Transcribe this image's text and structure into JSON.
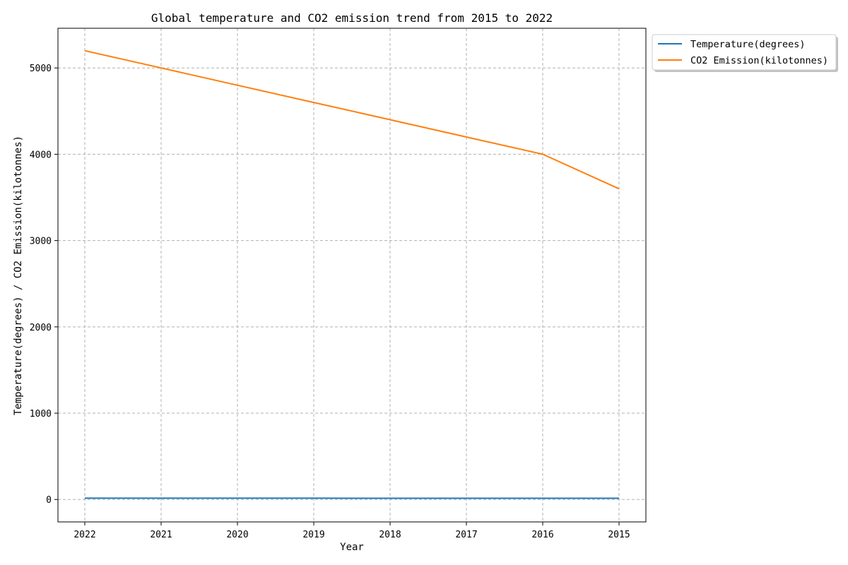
{
  "chart_data": {
    "type": "line",
    "title": "Global temperature and CO2 emission trend from 2015 to 2022",
    "xlabel": "Year",
    "ylabel": "Temperature(degrees) / CO2 Emission(kilotonnes)",
    "categories": [
      "2022",
      "2021",
      "2020",
      "2019",
      "2018",
      "2017",
      "2016",
      "2015"
    ],
    "series": [
      {
        "name": "Temperature(degrees)",
        "color": "#1f77b4",
        "values": [
          14.9,
          14.8,
          14.7,
          14.6,
          14.5,
          14.4,
          14.3,
          14.2
        ]
      },
      {
        "name": "CO2 Emission(kilotonnes)",
        "color": "#ff7f0e",
        "values": [
          5200,
          5000,
          4800,
          4600,
          4400,
          4200,
          4000,
          3600
        ]
      }
    ],
    "ylim": [
      -260,
      5460
    ],
    "yticks": [
      0,
      1000,
      2000,
      3000,
      4000,
      5000
    ],
    "ytick_labels": [
      "0",
      "1000",
      "2000",
      "3000",
      "4000",
      "5000"
    ],
    "grid": true,
    "legend_position": "upper-right outside"
  }
}
